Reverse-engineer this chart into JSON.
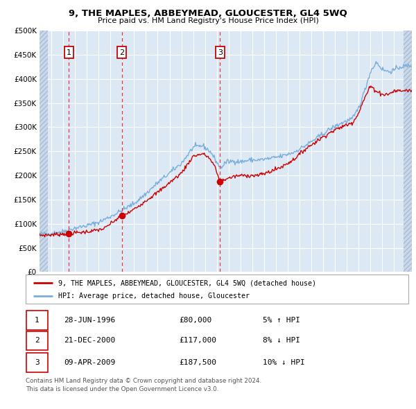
{
  "title": "9, THE MAPLES, ABBEYMEAD, GLOUCESTER, GL4 5WQ",
  "subtitle": "Price paid vs. HM Land Registry's House Price Index (HPI)",
  "legend_line1": "9, THE MAPLES, ABBEYMEAD, GLOUCESTER, GL4 5WQ (detached house)",
  "legend_line2": "HPI: Average price, detached house, Gloucester",
  "transactions": [
    {
      "num": 1,
      "date": "28-JUN-1996",
      "date_x": 1996.49,
      "price": 80000,
      "label": "5% ↑ HPI"
    },
    {
      "num": 2,
      "date": "21-DEC-2000",
      "date_x": 2000.97,
      "price": 117000,
      "label": "8% ↓ HPI"
    },
    {
      "num": 3,
      "date": "09-APR-2009",
      "date_x": 2009.27,
      "price": 187500,
      "label": "10% ↓ HPI"
    }
  ],
  "footer1": "Contains HM Land Registry data © Crown copyright and database right 2024.",
  "footer2": "This data is licensed under the Open Government Licence v3.0.",
  "red_color": "#cc0000",
  "blue_color": "#7aaddb",
  "bg_color": "#dce9f5",
  "hatch_color": "#c8d8ea",
  "grid_color": "#ffffff",
  "dashed_color": "#ee3333",
  "ylim_max": 500000,
  "ylim_min": 0,
  "xlim_min": 1994.0,
  "xlim_max": 2025.5
}
